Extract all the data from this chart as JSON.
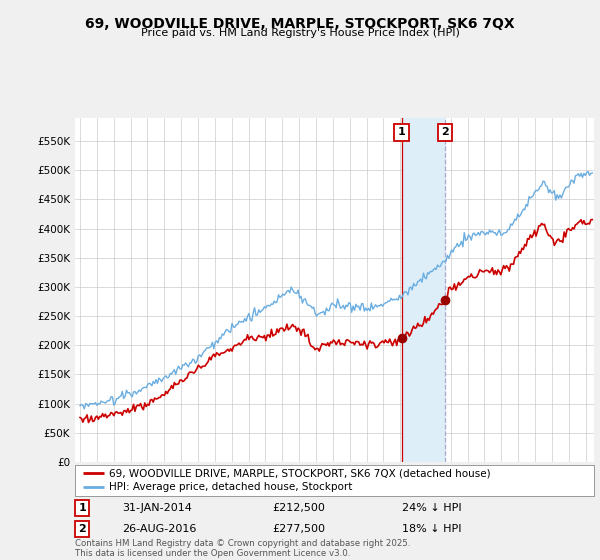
{
  "title": "69, WOODVILLE DRIVE, MARPLE, STOCKPORT, SK6 7QX",
  "subtitle": "Price paid vs. HM Land Registry's House Price Index (HPI)",
  "ylabel_ticks": [
    "£0",
    "£50K",
    "£100K",
    "£150K",
    "£200K",
    "£250K",
    "£300K",
    "£350K",
    "£400K",
    "£450K",
    "£500K",
    "£550K"
  ],
  "ytick_values": [
    0,
    50000,
    100000,
    150000,
    200000,
    250000,
    300000,
    350000,
    400000,
    450000,
    500000,
    550000
  ],
  "ylim": [
    0,
    590000
  ],
  "sale1_date": "31-JAN-2014",
  "sale1_price": 212500,
  "sale1_pct": "24% ↓ HPI",
  "sale2_date": "26-AUG-2016",
  "sale2_price": 277500,
  "sale2_pct": "18% ↓ HPI",
  "hpi_line_color": "#6aade0",
  "price_line_color": "#cc0000",
  "sale_marker_color": "#990000",
  "highlight_color": "#ddeef8",
  "vline1_color": "#cc0000",
  "vline2_color": "#aaaacc",
  "legend_label_price": "69, WOODVILLE DRIVE, MARPLE, STOCKPORT, SK6 7QX (detached house)",
  "legend_label_hpi": "HPI: Average price, detached house, Stockport",
  "footnote": "Contains HM Land Registry data © Crown copyright and database right 2025.\nThis data is licensed under the Open Government Licence v3.0.",
  "background_color": "#f0f0f0",
  "plot_bg_color": "#ffffff",
  "grid_color": "#cccccc",
  "sale1_x": 2014.08,
  "sale2_x": 2016.67
}
